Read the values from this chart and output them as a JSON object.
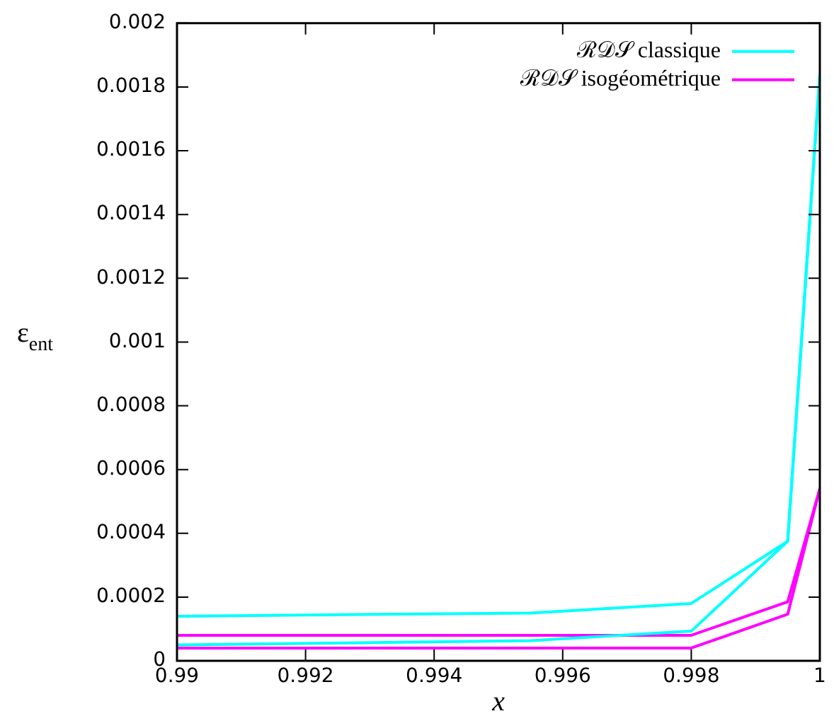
{
  "chart_data": {
    "type": "line",
    "xlabel": "x",
    "ylabel": "ε$_{ent}$",
    "xlim": [
      0.99,
      1
    ],
    "xticks": [
      0.99,
      0.992,
      0.994,
      0.996,
      0.998,
      1
    ],
    "ylim": [
      0,
      0.002
    ],
    "yticks": [
      0,
      0.0002,
      0.0004,
      0.0006,
      0.0008,
      0.001,
      0.0012,
      0.0014,
      0.0016,
      0.0018,
      0.002
    ],
    "x": [
      0.99,
      0.9955,
      0.998,
      0.9995,
      1
    ],
    "series": [
      {
        "name": "ℛ𝒟𝒮 classique",
        "color": "#00ffff",
        "values": [
          0.00014,
          0.00015,
          0.00018,
          0.000375,
          0.00184
        ]
      },
      {
        "color": "#00ffff",
        "values": [
          5e-05,
          6.3e-05,
          9.3e-05,
          0.000375,
          0.00184
        ]
      },
      {
        "name": "ℛ𝒟𝒮 isogéométrique",
        "color": "#ff00ff",
        "values": [
          8e-05,
          8e-05,
          8e-05,
          0.000185,
          0.00054
        ]
      },
      {
        "color": "#ff00ff",
        "values": [
          4e-05,
          4e-05,
          4e-05,
          0.000146,
          0.00054
        ]
      }
    ],
    "legend": "top right",
    "grid": false,
    "marker": "none",
    "line_style": "solid"
  }
}
